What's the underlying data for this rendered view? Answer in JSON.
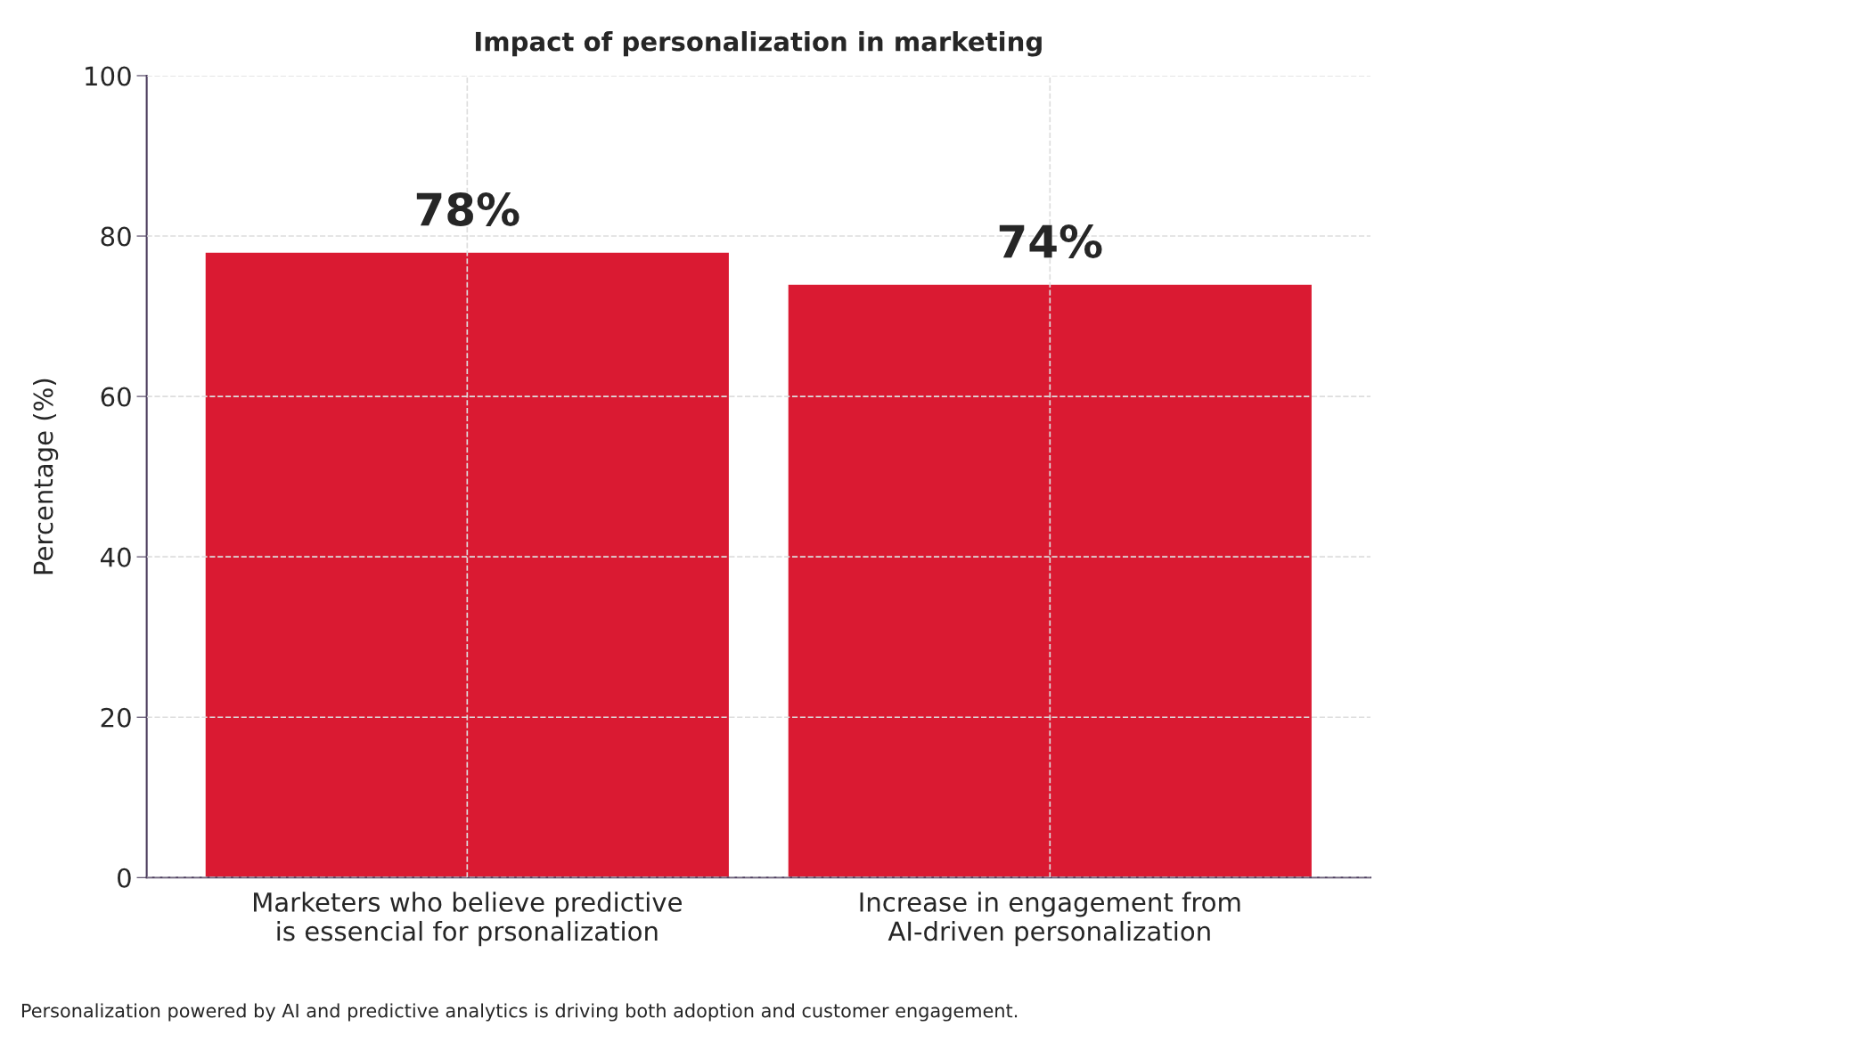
{
  "chart_data": {
    "type": "bar",
    "title": "Impact of personalization in marketing",
    "categories": [
      "Marketers who believe predictive\nis essencial for prsonalization",
      "Increase in engagement from\nAI-driven personalization"
    ],
    "values": [
      78,
      74
    ],
    "color": "#da1a32",
    "data_labels": true,
    "value_labels": [
      "78%",
      "74%"
    ],
    "ylabel": "Percentage (%)",
    "ylim": [
      0,
      100
    ],
    "yticks": [
      0,
      20,
      40,
      60,
      80,
      100
    ],
    "grid": true,
    "annotations": [
      "Personalization powered by AI and predictive analytics is driving both adoption and customer engagement."
    ]
  }
}
